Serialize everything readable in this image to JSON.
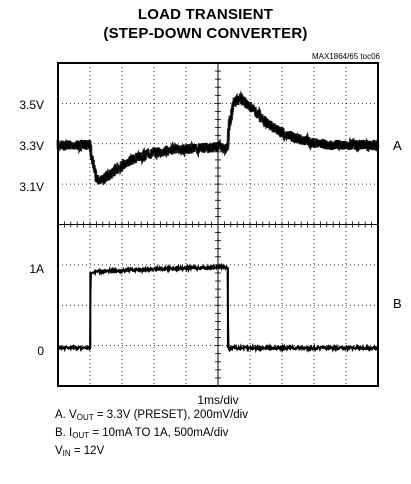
{
  "title": {
    "line1": "LOAD TRANSIENT",
    "line2": "(STEP-DOWN CONVERTER)"
  },
  "part_id": "MAX1864/65 toc06",
  "colors": {
    "trace": "#000000",
    "grid": "#000000",
    "background": "#ffffff"
  },
  "chart_data": {
    "type": "line",
    "grid": true,
    "x_divisions": 10,
    "y_divisions": 8,
    "x_units": "ms",
    "x_scale_per_div": 1,
    "timebase_label": "1ms/div",
    "channel_a": {
      "name": "A",
      "tick_labels": [
        "3.5V",
        "3.3V",
        "3.1V"
      ],
      "tick_values": [
        3.5,
        3.3,
        3.1
      ],
      "scale_per_div": 0.2,
      "points": [
        [
          0.0,
          3.3
        ],
        [
          1.0,
          3.3
        ],
        [
          1.05,
          3.25
        ],
        [
          1.2,
          3.14
        ],
        [
          1.3,
          3.12
        ],
        [
          1.6,
          3.15
        ],
        [
          2.0,
          3.2
        ],
        [
          2.5,
          3.24
        ],
        [
          3.0,
          3.26
        ],
        [
          3.5,
          3.275
        ],
        [
          4.0,
          3.28
        ],
        [
          4.5,
          3.285
        ],
        [
          5.0,
          3.29
        ],
        [
          5.3,
          3.29
        ],
        [
          5.35,
          3.4
        ],
        [
          5.5,
          3.51
        ],
        [
          5.7,
          3.53
        ],
        [
          6.0,
          3.49
        ],
        [
          6.5,
          3.41
        ],
        [
          7.0,
          3.36
        ],
        [
          7.5,
          3.33
        ],
        [
          8.0,
          3.31
        ],
        [
          8.5,
          3.3
        ],
        [
          10.0,
          3.3
        ]
      ]
    },
    "channel_b": {
      "name": "B",
      "tick_labels": [
        "1A",
        "0"
      ],
      "tick_values": [
        1.0,
        0.0
      ],
      "scale_per_div": 0.5,
      "points": [
        [
          0.0,
          0.0
        ],
        [
          1.0,
          0.0
        ],
        [
          1.02,
          0.94
        ],
        [
          1.5,
          0.95
        ],
        [
          3.0,
          0.98
        ],
        [
          4.5,
          0.995
        ],
        [
          5.3,
          1.0
        ],
        [
          5.32,
          0.0
        ],
        [
          10.0,
          0.0
        ]
      ]
    }
  },
  "notes": [
    {
      "prefix": "A. V",
      "sub": "OUT",
      "suffix": " = 3.3V (PRESET), 200mV/div"
    },
    {
      "prefix": "B. I",
      "sub": "OUT",
      "suffix": " = 10mA TO 1A, 500mA/div"
    },
    {
      "prefix": "V",
      "sub": "IN",
      "suffix": " = 12V"
    }
  ]
}
